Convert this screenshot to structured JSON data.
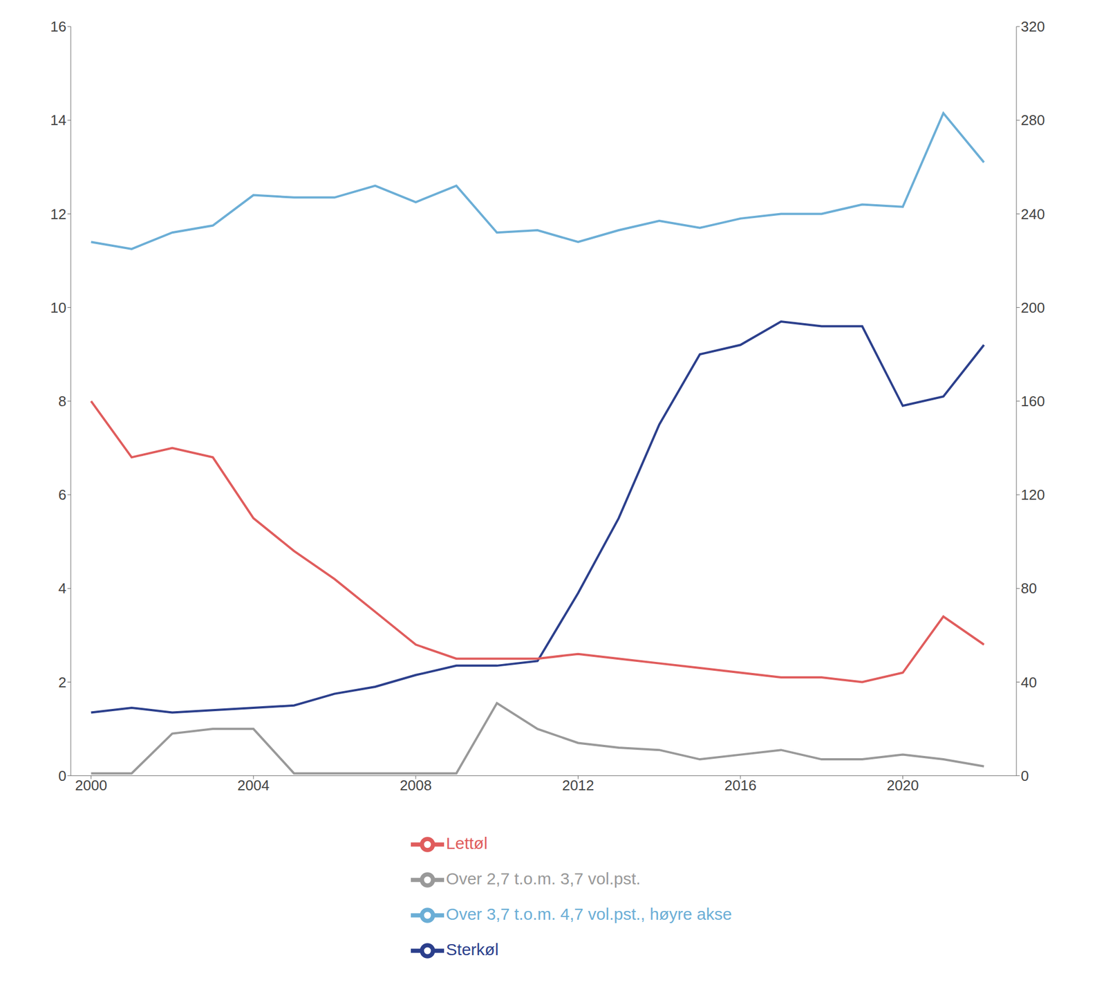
{
  "chart_data": {
    "type": "line",
    "x": [
      2000,
      2001,
      2002,
      2003,
      2004,
      2005,
      2006,
      2007,
      2008,
      2009,
      2010,
      2011,
      2012,
      2013,
      2014,
      2015,
      2016,
      2017,
      2018,
      2019,
      2020,
      2021,
      2022
    ],
    "series": [
      {
        "name": "Sterkøl",
        "color": "#2b3f8c",
        "values": [
          1.35,
          1.45,
          1.35,
          1.4,
          1.45,
          1.5,
          1.75,
          1.9,
          2.15,
          2.35,
          2.35,
          2.45,
          3.9,
          5.5,
          7.5,
          9.0,
          9.2,
          9.7,
          9.6,
          9.6,
          7.9,
          8.1,
          9.2
        ]
      },
      {
        "name": "Lettøl",
        "color": "#e05c5c",
        "values": [
          8.0,
          6.8,
          7.0,
          6.8,
          5.5,
          4.8,
          4.2,
          3.5,
          2.8,
          2.5,
          2.5,
          2.5,
          2.6,
          2.5,
          2.4,
          2.3,
          2.2,
          2.1,
          2.1,
          2.0,
          2.2,
          3.4,
          2.8
        ]
      },
      {
        "name": "Over 2,7 t.o.m. 3,7 vol.pst.",
        "color": "#999999",
        "values": [
          0.05,
          0.05,
          0.9,
          1.0,
          1.0,
          0.05,
          0.05,
          0.05,
          0.05,
          0.05,
          1.55,
          1.0,
          0.7,
          0.6,
          0.55,
          0.35,
          0.45,
          0.55,
          0.35,
          0.35,
          0.45,
          0.35,
          0.2
        ]
      },
      {
        "name": "Over 3,7 t.o.m. 4,7 vol.pst., høyre akse",
        "color": "#6baed6",
        "axis": "y2",
        "values": [
          228,
          225,
          232,
          235,
          248,
          247,
          247,
          252,
          245,
          252,
          232,
          233,
          228,
          233,
          237,
          234,
          238,
          240,
          240,
          244,
          243,
          283,
          262
        ]
      }
    ],
    "xlim": [
      1999.5,
      2022.8
    ],
    "xticks": [
      2000,
      2004,
      2008,
      2012,
      2016,
      2020
    ],
    "ylim": [
      0,
      16
    ],
    "yticks": [
      0,
      2,
      4,
      6,
      8,
      10,
      12,
      14,
      16
    ],
    "y2lim": [
      0,
      320
    ],
    "y2ticks": [
      0,
      40,
      80,
      120,
      160,
      200,
      240,
      280,
      320
    ],
    "grid": false,
    "legend": "bottom"
  }
}
